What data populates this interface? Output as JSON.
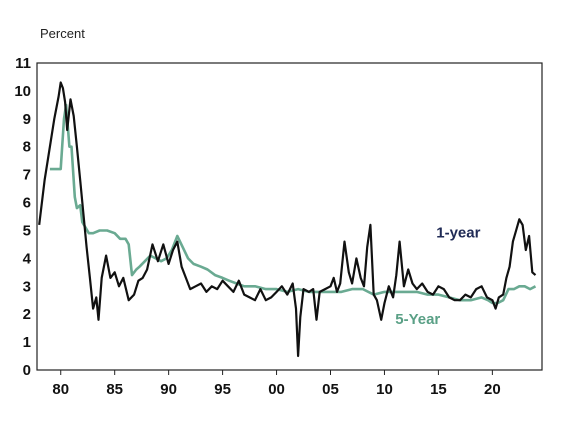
{
  "chart_data": {
    "type": "line",
    "ylabel": "Percent",
    "xlabel": "",
    "ylim": [
      0,
      11
    ],
    "xlim": [
      1977.8,
      2024.6
    ],
    "yticks": [
      "0",
      "1",
      "2",
      "3",
      "4",
      "5",
      "6",
      "7",
      "8",
      "9",
      "10",
      "11"
    ],
    "xticks": [
      {
        "x": 1980,
        "label": "80"
      },
      {
        "x": 1985,
        "label": "85"
      },
      {
        "x": 1990,
        "label": "90"
      },
      {
        "x": 1995,
        "label": "95"
      },
      {
        "x": 2000,
        "label": "00"
      },
      {
        "x": 2005,
        "label": "05"
      },
      {
        "x": 2010,
        "label": "10"
      },
      {
        "x": 2015,
        "label": "15"
      },
      {
        "x": 2020,
        "label": "20"
      }
    ],
    "grid": false,
    "legend": "direct labels",
    "series": [
      {
        "name": "1-year",
        "color": "#111111",
        "label_color": "#1f2a55",
        "x": [
          1978.0,
          1978.5,
          1979.0,
          1979.4,
          1979.8,
          1980.0,
          1980.2,
          1980.4,
          1980.6,
          1980.9,
          1981.2,
          1981.5,
          1981.8,
          1982.1,
          1982.4,
          1982.7,
          1983.0,
          1983.3,
          1983.5,
          1983.8,
          1984.2,
          1984.6,
          1985.0,
          1985.4,
          1985.8,
          1986.3,
          1986.8,
          1987.2,
          1987.6,
          1988.0,
          1988.5,
          1989.0,
          1989.5,
          1990.0,
          1990.4,
          1990.8,
          1991.2,
          1991.6,
          1992.0,
          1992.5,
          1993.0,
          1993.5,
          1994.0,
          1994.5,
          1995.0,
          1995.5,
          1996.0,
          1996.5,
          1997.0,
          1997.5,
          1998.0,
          1998.5,
          1999.0,
          1999.5,
          2000.0,
          2000.5,
          2001.0,
          2001.5,
          2001.8,
          2002.0,
          2002.2,
          2002.5,
          2003.0,
          2003.4,
          2003.7,
          2004.0,
          2004.5,
          2005.0,
          2005.3,
          2005.6,
          2005.9,
          2006.3,
          2006.7,
          2007.0,
          2007.4,
          2007.8,
          2008.1,
          2008.4,
          2008.7,
          2009.0,
          2009.3,
          2009.7,
          2010.0,
          2010.4,
          2010.8,
          2011.1,
          2011.4,
          2011.8,
          2012.2,
          2012.6,
          2013.0,
          2013.5,
          2014.0,
          2014.5,
          2015.0,
          2015.5,
          2016.0,
          2016.5,
          2017.0,
          2017.5,
          2018.0,
          2018.5,
          2019.0,
          2019.5,
          2020.0,
          2020.3,
          2020.6,
          2021.0,
          2021.3,
          2021.6,
          2021.9,
          2022.2,
          2022.5,
          2022.8,
          2023.1,
          2023.4,
          2023.7,
          2024.0
        ],
        "y": [
          5.2,
          6.8,
          8.0,
          9.0,
          9.8,
          10.3,
          10.1,
          9.6,
          8.6,
          9.7,
          9.1,
          8.0,
          6.8,
          5.6,
          4.4,
          3.3,
          2.2,
          2.6,
          1.8,
          3.3,
          4.1,
          3.3,
          3.5,
          3.0,
          3.3,
          2.5,
          2.7,
          3.2,
          3.3,
          3.6,
          4.5,
          3.9,
          4.5,
          3.8,
          4.3,
          4.6,
          3.7,
          3.3,
          2.9,
          3.0,
          3.1,
          2.8,
          3.0,
          2.9,
          3.2,
          3.0,
          2.8,
          3.2,
          2.7,
          2.6,
          2.5,
          2.9,
          2.5,
          2.6,
          2.8,
          3.0,
          2.7,
          3.1,
          2.2,
          0.5,
          1.9,
          2.9,
          2.8,
          2.9,
          1.8,
          2.8,
          2.9,
          3.0,
          3.3,
          2.8,
          3.1,
          4.6,
          3.5,
          3.1,
          4.0,
          3.3,
          3.0,
          4.4,
          5.2,
          2.7,
          2.5,
          1.8,
          2.4,
          3.0,
          2.6,
          3.4,
          4.6,
          3.0,
          3.6,
          3.1,
          2.9,
          3.1,
          2.8,
          2.7,
          3.0,
          2.9,
          2.6,
          2.5,
          2.5,
          2.7,
          2.6,
          2.9,
          3.0,
          2.6,
          2.5,
          2.2,
          2.6,
          2.7,
          3.3,
          3.7,
          4.6,
          5.0,
          5.4,
          5.2,
          4.3,
          4.8,
          3.5,
          3.4
        ]
      },
      {
        "name": "5-Year",
        "color": "#6aaa92",
        "label_color": "#5aa086",
        "x": [
          1979.0,
          1979.6,
          1980.0,
          1980.3,
          1980.5,
          1980.8,
          1981.0,
          1981.3,
          1981.5,
          1981.8,
          1982.0,
          1982.3,
          1982.6,
          1983.0,
          1983.6,
          1984.3,
          1985.0,
          1985.5,
          1986.0,
          1986.3,
          1986.6,
          1987.0,
          1987.3,
          1987.8,
          1988.3,
          1988.8,
          1989.3,
          1989.8,
          1990.3,
          1990.8,
          1991.3,
          1991.8,
          1992.3,
          1993.0,
          1993.6,
          1994.3,
          1995.0,
          1995.6,
          1996.3,
          1997.0,
          1998.0,
          1999.0,
          2000.0,
          2001.0,
          2002.0,
          2003.0,
          2004.0,
          2005.0,
          2006.0,
          2007.0,
          2008.0,
          2008.5,
          2009.0,
          2010.0,
          2011.0,
          2012.0,
          2013.0,
          2014.0,
          2015.0,
          2016.0,
          2017.0,
          2018.0,
          2019.0,
          2019.6,
          2020.0,
          2020.5,
          2021.0,
          2021.5,
          2022.0,
          2022.5,
          2023.0,
          2023.5,
          2024.0
        ],
        "y": [
          7.2,
          7.2,
          7.2,
          9.0,
          9.5,
          8.0,
          8.0,
          6.2,
          5.8,
          5.9,
          5.3,
          5.1,
          4.9,
          4.9,
          5.0,
          5.0,
          4.9,
          4.7,
          4.7,
          4.5,
          3.4,
          3.6,
          3.7,
          3.9,
          4.1,
          4.0,
          3.9,
          4.0,
          4.3,
          4.8,
          4.4,
          4.0,
          3.8,
          3.7,
          3.6,
          3.4,
          3.3,
          3.2,
          3.1,
          3.0,
          3.0,
          2.9,
          2.9,
          2.8,
          2.9,
          2.8,
          2.8,
          2.8,
          2.8,
          2.9,
          2.9,
          2.8,
          2.7,
          2.8,
          2.8,
          2.8,
          2.8,
          2.7,
          2.7,
          2.6,
          2.5,
          2.5,
          2.6,
          2.5,
          2.4,
          2.4,
          2.5,
          2.9,
          2.9,
          3.0,
          3.0,
          2.9,
          3.0
        ]
      }
    ],
    "annotations": [
      {
        "text": "1-year",
        "x": 2014.8,
        "y": 4.75
      },
      {
        "text": "5-Year",
        "x": 2011.0,
        "y": 1.65
      }
    ]
  }
}
